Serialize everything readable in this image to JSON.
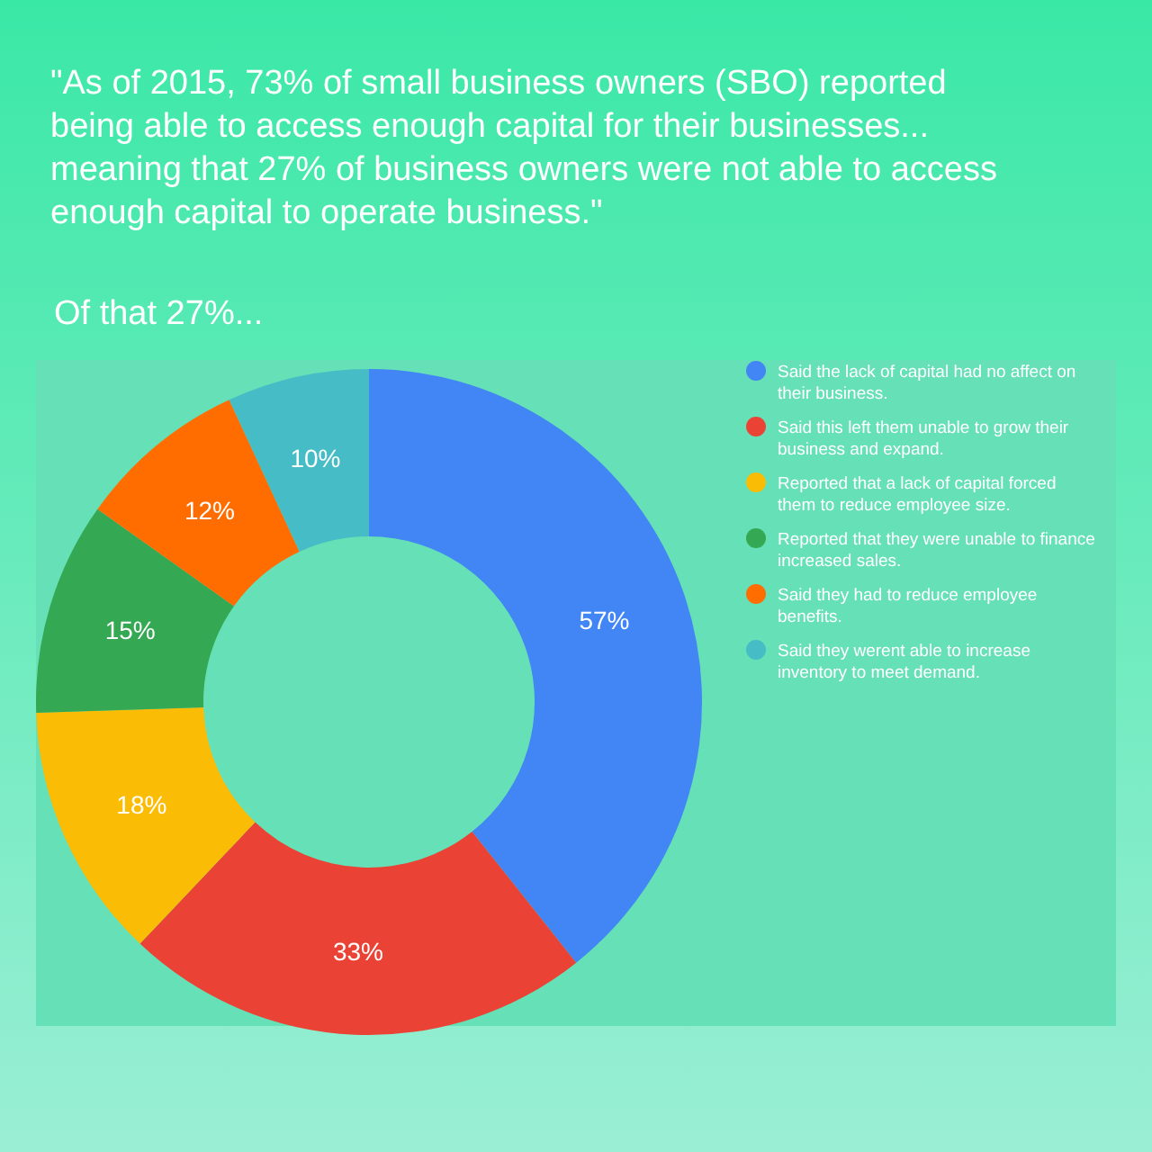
{
  "chart_data": {
    "type": "donut",
    "title": "\"As of 2015, 73% of small business owners (SBO) reported being able to access enough capital for their businesses... meaning that 27% of business owners were not able to access enough capital to operate business.\"",
    "subtitle": "Of that 27%...",
    "categories": [
      "Said the lack of capital had no affect on their business.",
      "Said this left them unable to grow their business and expand.",
      "Reported that a lack of capital forced them to reduce employee size.",
      "Reported that they were unable to finance increased sales.",
      "Said they had to reduce employee benefits.",
      "Said they werent able to increase inventory to meet demand."
    ],
    "values": [
      57,
      33,
      18,
      15,
      12,
      10
    ],
    "colors": [
      "#4285f4",
      "#ea4335",
      "#fbbc05",
      "#34a853",
      "#ff6d01",
      "#46bdc6"
    ],
    "value_labels": [
      "57%",
      "33%",
      "18%",
      "15%",
      "12%",
      "10%"
    ],
    "legend": "right"
  }
}
